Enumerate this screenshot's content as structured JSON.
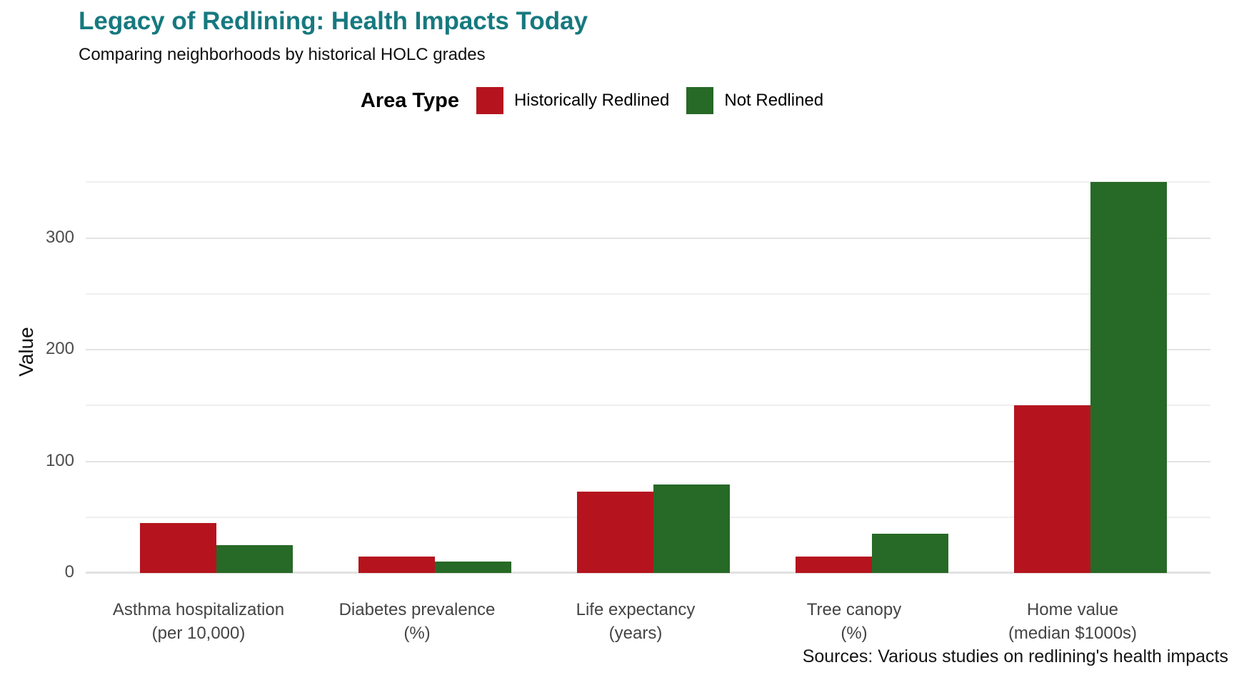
{
  "chart_data": {
    "type": "bar",
    "title": "Legacy of Redlining: Health Impacts Today",
    "subtitle": "Comparing neighborhoods by historical HOLC grades",
    "caption": "Sources: Various studies on redlining's health impacts",
    "legend_title": "Area Type",
    "legend_position": "top",
    "ylabel": "Value",
    "xlabel": "",
    "grid": true,
    "ylim": [
      0,
      377
    ],
    "yticks_major": [
      0,
      100,
      200,
      300
    ],
    "yticks_minor": [
      50,
      150,
      250,
      350
    ],
    "categories": [
      {
        "line1": "Asthma hospitalization",
        "line2": "(per 10,000)"
      },
      {
        "line1": "Diabetes prevalence",
        "line2": "(%)"
      },
      {
        "line1": "Life expectancy",
        "line2": "(years)"
      },
      {
        "line1": "Tree canopy",
        "line2": "(%)"
      },
      {
        "line1": "Home value",
        "line2": "(median $1000s)"
      }
    ],
    "series": [
      {
        "name": "Historically Redlined",
        "color": "#b5141e",
        "values": [
          45,
          15,
          73,
          15,
          150
        ]
      },
      {
        "name": "Not Redlined",
        "color": "#276926",
        "values": [
          25,
          10,
          79,
          35,
          350
        ]
      }
    ],
    "colors": {
      "title_teal": "#16797f",
      "grid_major": "#e3e3e3",
      "grid_minor": "#efefef"
    }
  }
}
